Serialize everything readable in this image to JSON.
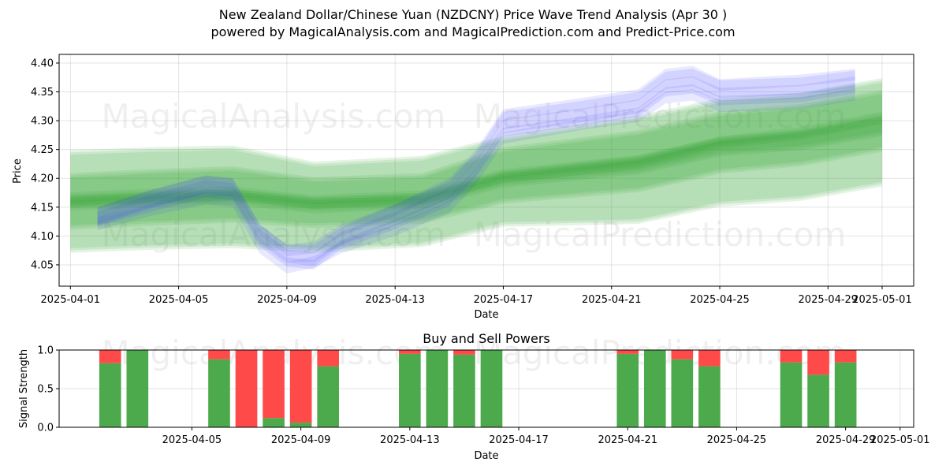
{
  "header": {
    "title": "New Zealand Dollar/Chinese Yuan (NZDCNY) Price Wave Trend Analysis (Apr 30 )",
    "subtitle": "powered by MagicalAnalysis.com and MagicalPrediction.com and Predict-Price.com"
  },
  "watermarks": [
    "MagicalAnalysis.com",
    "MagicalPrediction.com"
  ],
  "colors": {
    "bands": "#2ca02c",
    "waves": "#4040ff",
    "buy": "#4caa4c",
    "sell": "#ff4a4a"
  },
  "chart_data": [
    {
      "type": "area",
      "title": "",
      "xlabel": "Date",
      "ylabel": "Price",
      "x_range": [
        "2025-03-31T14:00",
        "2025-05-02T04:00"
      ],
      "ylim": [
        4.013,
        4.415
      ],
      "y_ticks": [
        4.05,
        4.1,
        4.15,
        4.2,
        4.25,
        4.3,
        4.35,
        4.4
      ],
      "x_ticks": [
        "2025-04-01",
        "2025-04-05",
        "2025-04-09",
        "2025-04-13",
        "2025-04-17",
        "2025-04-21",
        "2025-04-25",
        "2025-04-29",
        "2025-05-01"
      ],
      "grid": true,
      "band_dates": [
        "2025-04-01",
        "2025-04-04",
        "2025-04-07",
        "2025-04-10",
        "2025-04-14",
        "2025-04-17",
        "2025-04-22",
        "2025-04-25",
        "2025-04-28",
        "2025-05-01"
      ],
      "trend_bands": [
        {
          "center": [
            4.16,
            4.165,
            4.168,
            4.15,
            4.16,
            4.195,
            4.215,
            4.245,
            4.255,
            4.28
          ],
          "half_width": [
            0.085,
            0.085,
            0.085,
            0.075,
            0.075,
            0.075,
            0.09,
            0.09,
            0.09,
            0.09
          ]
        },
        {
          "center": [
            4.16,
            4.167,
            4.172,
            4.158,
            4.165,
            4.205,
            4.23,
            4.262,
            4.275,
            4.3
          ],
          "half_width": [
            0.045,
            0.045,
            0.045,
            0.04,
            0.04,
            0.045,
            0.05,
            0.05,
            0.05,
            0.05
          ]
        },
        {
          "center": [
            4.16,
            4.166,
            4.17,
            4.155,
            4.163,
            4.2,
            4.224,
            4.255,
            4.266,
            4.29
          ],
          "half_width": [
            0.012,
            0.012,
            0.012,
            0.012,
            0.012,
            0.012,
            0.013,
            0.013,
            0.013,
            0.013
          ]
        },
        {
          "center": [
            4.16,
            4.166,
            4.171,
            4.157,
            4.164,
            4.202,
            4.228,
            4.262,
            4.278,
            4.305
          ],
          "half_width": [
            0.006,
            0.006,
            0.006,
            0.006,
            0.006,
            0.006,
            0.007,
            0.007,
            0.007,
            0.007
          ]
        }
      ],
      "wave_dates": [
        "2025-04-02",
        "2025-04-04",
        "2025-04-06",
        "2025-04-07",
        "2025-04-08",
        "2025-04-09",
        "2025-04-10",
        "2025-04-11",
        "2025-04-13",
        "2025-04-15",
        "2025-04-16",
        "2025-04-17",
        "2025-04-20",
        "2025-04-22",
        "2025-04-23",
        "2025-04-24",
        "2025-04-25",
        "2025-04-28",
        "2025-04-30"
      ],
      "price_waves": [
        {
          "values": [
            4.13,
            4.16,
            4.185,
            4.18,
            4.1,
            4.065,
            4.06,
            4.095,
            4.13,
            4.17,
            4.22,
            4.29,
            4.31,
            4.325,
            4.36,
            4.365,
            4.345,
            4.35,
            4.365
          ],
          "half_width": 0.012
        },
        {
          "values": [
            4.125,
            4.15,
            4.175,
            4.17,
            4.09,
            4.055,
            4.05,
            4.085,
            4.12,
            4.16,
            4.21,
            4.28,
            4.3,
            4.315,
            4.35,
            4.355,
            4.335,
            4.34,
            4.355
          ],
          "half_width": 0.008
        },
        {
          "values": [
            4.135,
            4.165,
            4.19,
            4.185,
            4.105,
            4.07,
            4.07,
            4.1,
            4.14,
            4.18,
            4.23,
            4.3,
            4.32,
            4.335,
            4.37,
            4.375,
            4.355,
            4.36,
            4.372
          ],
          "half_width": 0.015
        },
        {
          "values": [
            4.12,
            4.145,
            4.165,
            4.16,
            4.08,
            4.045,
            4.055,
            4.08,
            4.11,
            4.15,
            4.2,
            4.27,
            4.295,
            4.308,
            4.34,
            4.345,
            4.325,
            4.33,
            4.345
          ],
          "half_width": 0.01
        },
        {
          "values": [
            4.14,
            4.17,
            4.195,
            4.19,
            4.11,
            4.075,
            4.08,
            4.11,
            4.145,
            4.19,
            4.24,
            4.31,
            4.33,
            4.345,
            4.38,
            4.385,
            4.362,
            4.37,
            4.38
          ],
          "half_width": 0.01
        }
      ]
    },
    {
      "type": "bar",
      "title": "Buy and Sell Powers",
      "xlabel": "Date",
      "ylabel": "Signal Strength",
      "ylim": [
        0,
        1.0
      ],
      "y_ticks": [
        "0.0",
        "0.5",
        "1.0"
      ],
      "x_ticks": [
        "2025-04-05",
        "2025-04-09",
        "2025-04-13",
        "2025-04-17",
        "2025-04-21",
        "2025-04-25",
        "2025-04-29",
        "2025-05-01"
      ],
      "categories": [
        "2025-04-02",
        "2025-04-03",
        "2025-04-06",
        "2025-04-07",
        "2025-04-08",
        "2025-04-09",
        "2025-04-10",
        "2025-04-13",
        "2025-04-14",
        "2025-04-15",
        "2025-04-16",
        "2025-04-21",
        "2025-04-22",
        "2025-04-23",
        "2025-04-24",
        "2025-04-27",
        "2025-04-28",
        "2025-04-29"
      ],
      "series": [
        {
          "name": "",
          "role": "buy",
          "values": [
            0.83,
            1.0,
            0.88,
            0.0,
            0.12,
            0.06,
            0.79,
            0.95,
            1.0,
            0.94,
            1.0,
            0.95,
            1.0,
            0.88,
            0.79,
            0.84,
            0.68,
            0.84
          ]
        },
        {
          "name": "",
          "role": "sell",
          "values": [
            0.17,
            0.0,
            0.12,
            1.0,
            0.88,
            0.94,
            0.21,
            0.05,
            0.0,
            0.06,
            0.0,
            0.05,
            0.0,
            0.12,
            0.21,
            0.16,
            0.32,
            0.16
          ]
        }
      ],
      "grid": true
    }
  ]
}
